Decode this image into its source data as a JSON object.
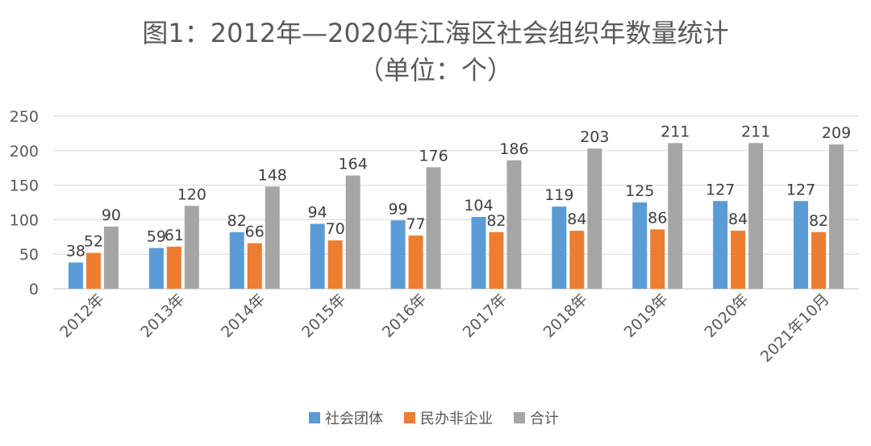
{
  "chart_data": {
    "type": "bar",
    "title": "图1：2012年—2020年江海区社会组织年数量统计",
    "subtitle": "（单位：个）",
    "xlabel": "",
    "ylabel": "",
    "ylim": [
      0,
      250
    ],
    "yticks": [
      0,
      50,
      100,
      150,
      200,
      250
    ],
    "grid": true,
    "legend_position": "bottom",
    "categories": [
      "2012年",
      "2013年",
      "2014年",
      "2015年",
      "2016年",
      "2017年",
      "2018年",
      "2019年",
      "2020年",
      "2021年10月"
    ],
    "series": [
      {
        "name": "社会团体",
        "color": "#5b9bd5",
        "values": [
          38,
          59,
          82,
          94,
          99,
          104,
          119,
          125,
          127,
          127
        ]
      },
      {
        "name": "民办非企业",
        "color": "#ed7d31",
        "values": [
          52,
          61,
          66,
          70,
          77,
          82,
          84,
          86,
          84,
          82
        ]
      },
      {
        "name": "合计",
        "color": "#a5a5a5",
        "values": [
          90,
          120,
          148,
          164,
          176,
          186,
          203,
          211,
          211,
          209
        ]
      }
    ]
  }
}
